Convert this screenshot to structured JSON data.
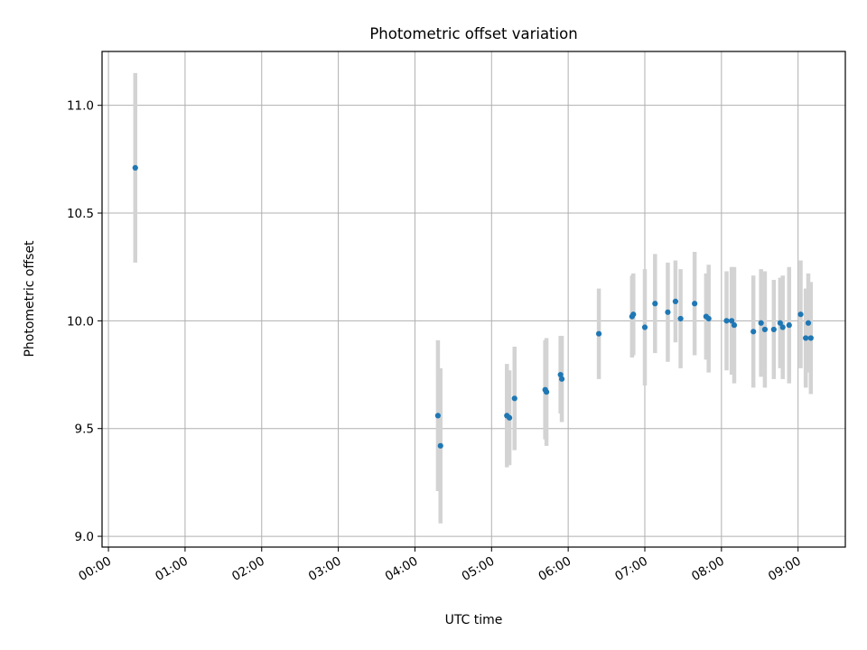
{
  "chart_data": {
    "type": "scatter",
    "title": "Photometric offset variation",
    "xlabel": "UTC time",
    "ylabel": "Photometric offset",
    "x_ticks": [
      "00:00",
      "01:00",
      "02:00",
      "03:00",
      "04:00",
      "05:00",
      "06:00",
      "07:00",
      "08:00",
      "09:00"
    ],
    "y_ticks": [
      "9.0",
      "9.5",
      "10.0",
      "10.5",
      "11.0"
    ],
    "xlim": [
      "23:55",
      "09:37"
    ],
    "ylim": [
      8.95,
      11.25
    ],
    "grid": true,
    "marker_color": "#1f77b4",
    "errorbar_color": "#d3d3d3",
    "points": [
      {
        "time": "00:21",
        "y": 10.71,
        "err": 0.44
      },
      {
        "time": "04:18",
        "y": 9.56,
        "err": 0.35
      },
      {
        "time": "04:20",
        "y": 9.42,
        "err": 0.36
      },
      {
        "time": "05:12",
        "y": 9.56,
        "err": 0.24
      },
      {
        "time": "05:14",
        "y": 9.55,
        "err": 0.22
      },
      {
        "time": "05:18",
        "y": 9.64,
        "err": 0.24
      },
      {
        "time": "05:42",
        "y": 9.68,
        "err": 0.23
      },
      {
        "time": "05:43",
        "y": 9.67,
        "err": 0.25
      },
      {
        "time": "05:54",
        "y": 9.75,
        "err": 0.18
      },
      {
        "time": "05:55",
        "y": 9.73,
        "err": 0.2
      },
      {
        "time": "06:24",
        "y": 9.94,
        "err": 0.21
      },
      {
        "time": "06:50",
        "y": 10.02,
        "err": 0.19
      },
      {
        "time": "06:51",
        "y": 10.03,
        "err": 0.19
      },
      {
        "time": "07:00",
        "y": 9.97,
        "err": 0.27
      },
      {
        "time": "07:08",
        "y": 10.08,
        "err": 0.23
      },
      {
        "time": "07:18",
        "y": 10.04,
        "err": 0.23
      },
      {
        "time": "07:24",
        "y": 10.09,
        "err": 0.19
      },
      {
        "time": "07:28",
        "y": 10.01,
        "err": 0.23
      },
      {
        "time": "07:39",
        "y": 10.08,
        "err": 0.24
      },
      {
        "time": "07:48",
        "y": 10.02,
        "err": 0.2
      },
      {
        "time": "07:50",
        "y": 10.01,
        "err": 0.25
      },
      {
        "time": "08:04",
        "y": 10.0,
        "err": 0.23
      },
      {
        "time": "08:08",
        "y": 10.0,
        "err": 0.25
      },
      {
        "time": "08:10",
        "y": 9.98,
        "err": 0.27
      },
      {
        "time": "08:25",
        "y": 9.95,
        "err": 0.26
      },
      {
        "time": "08:31",
        "y": 9.99,
        "err": 0.25
      },
      {
        "time": "08:34",
        "y": 9.96,
        "err": 0.27
      },
      {
        "time": "08:41",
        "y": 9.96,
        "err": 0.23
      },
      {
        "time": "08:46",
        "y": 9.99,
        "err": 0.21
      },
      {
        "time": "08:48",
        "y": 9.97,
        "err": 0.24
      },
      {
        "time": "08:53",
        "y": 9.98,
        "err": 0.27
      },
      {
        "time": "09:02",
        "y": 10.03,
        "err": 0.25
      },
      {
        "time": "09:06",
        "y": 9.92,
        "err": 0.23
      },
      {
        "time": "09:08",
        "y": 9.99,
        "err": 0.23
      },
      {
        "time": "09:10",
        "y": 9.92,
        "err": 0.26
      }
    ]
  }
}
